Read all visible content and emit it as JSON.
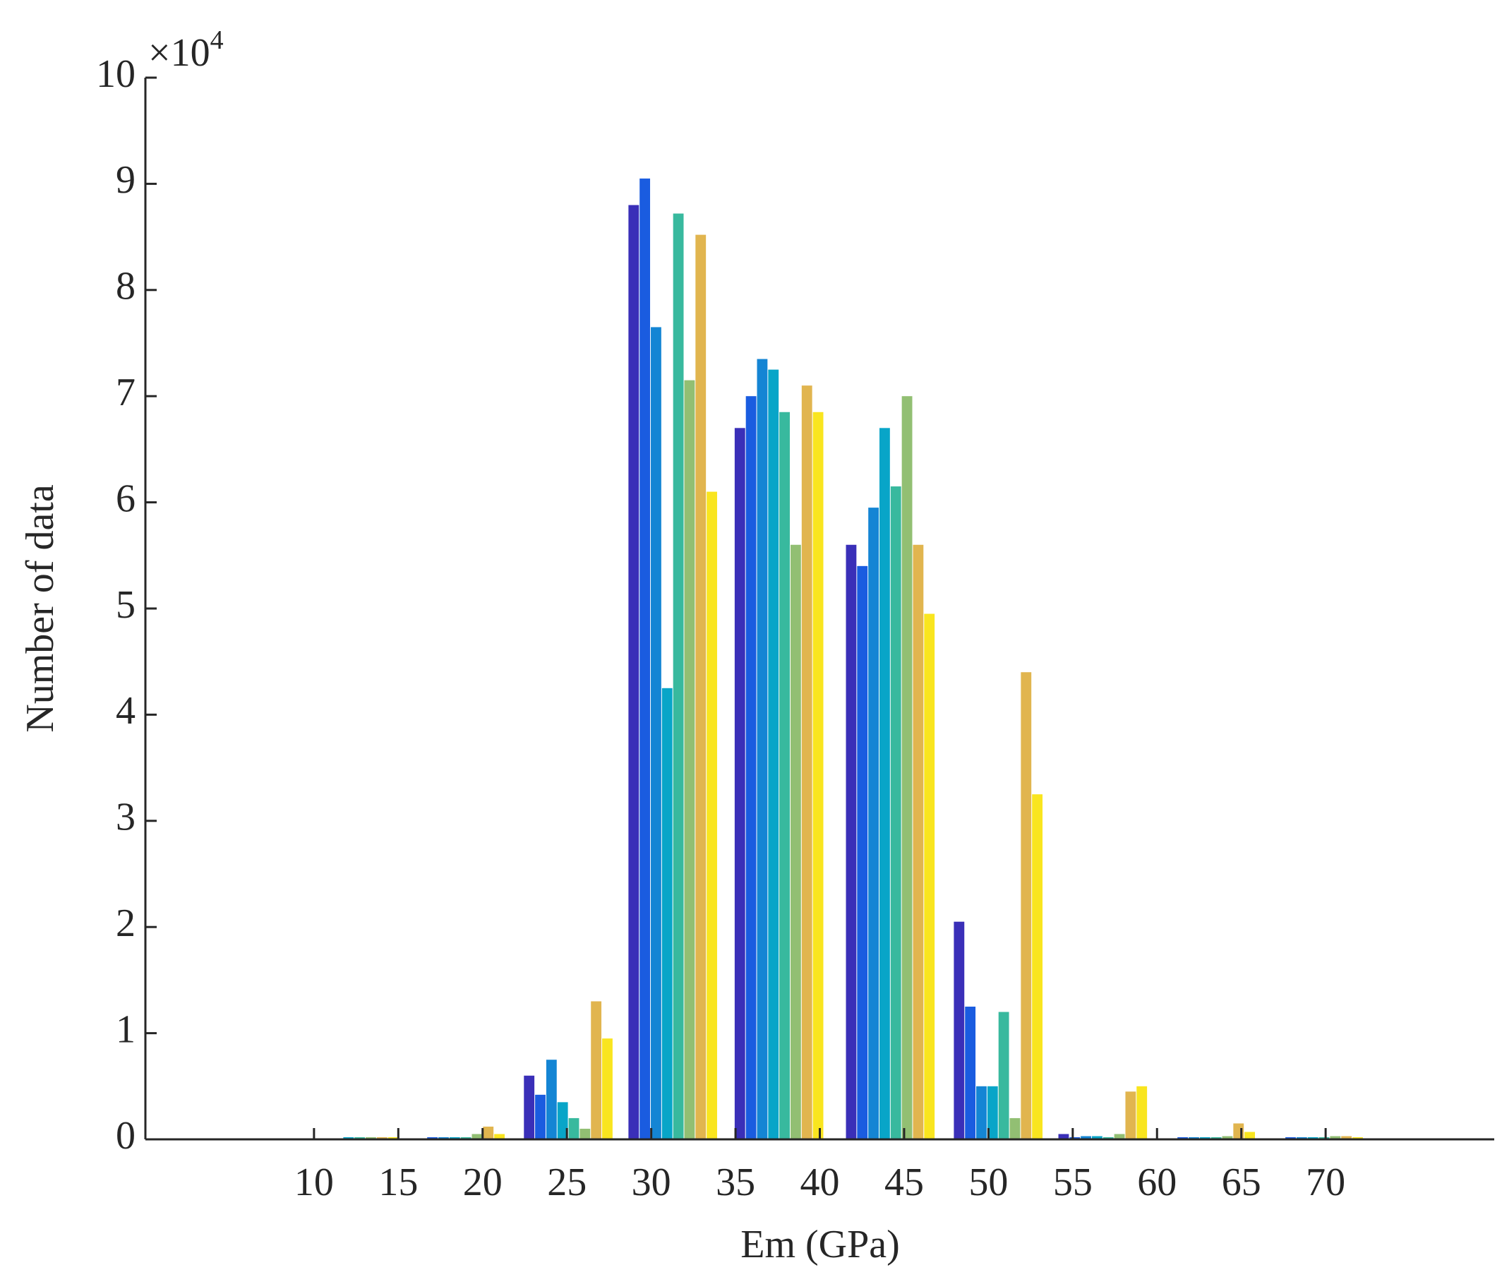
{
  "chart_data": {
    "type": "bar",
    "xlabel": "Em (GPa)",
    "ylabel": "Number of data",
    "y_multiplier_base": "×10",
    "y_multiplier_exponent": "4",
    "x": [
      12.4,
      18.7,
      25.1,
      31.3,
      37.6,
      44.2,
      50.6,
      56.8,
      63.2,
      69.6
    ],
    "group_width": 5.3,
    "series": [
      {
        "color": "#3a2fb8",
        "values": [
          0.01,
          0.01,
          0.6,
          8.8,
          6.7,
          5.6,
          2.05,
          0.05,
          0.01,
          0.01
        ]
      },
      {
        "color": "#1a5ce0",
        "values": [
          0.01,
          0.02,
          0.42,
          9.05,
          7.0,
          5.4,
          1.25,
          0.02,
          0.02,
          0.02
        ]
      },
      {
        "color": "#1485d4",
        "values": [
          0.01,
          0.02,
          0.75,
          7.65,
          7.35,
          5.95,
          0.5,
          0.03,
          0.02,
          0.02
        ]
      },
      {
        "color": "#08a5c8",
        "values": [
          0.02,
          0.02,
          0.35,
          4.25,
          7.25,
          6.7,
          0.5,
          0.03,
          0.02,
          0.02
        ]
      },
      {
        "color": "#38b99e",
        "values": [
          0.02,
          0.02,
          0.2,
          8.72,
          6.85,
          6.15,
          1.2,
          0.02,
          0.02,
          0.02
        ]
      },
      {
        "color": "#92bf73",
        "values": [
          0.02,
          0.05,
          0.1,
          7.15,
          5.6,
          7.0,
          0.2,
          0.05,
          0.03,
          0.03
        ]
      },
      {
        "color": "#e1b54f",
        "values": [
          0.02,
          0.12,
          1.3,
          8.52,
          7.1,
          5.6,
          4.4,
          0.45,
          0.15,
          0.03
        ]
      },
      {
        "color": "#f9e51f",
        "values": [
          0.02,
          0.05,
          0.95,
          6.1,
          6.85,
          4.95,
          3.25,
          0.5,
          0.07,
          0.02
        ]
      }
    ],
    "xlim": [
      0,
      80
    ],
    "xticks": [
      10,
      15,
      20,
      25,
      30,
      35,
      40,
      45,
      50,
      55,
      60,
      65,
      70
    ],
    "ylim": [
      0,
      10
    ],
    "yticks": [
      0,
      1,
      2,
      3,
      4,
      5,
      6,
      7,
      8,
      9,
      10
    ],
    "grid": false
  }
}
